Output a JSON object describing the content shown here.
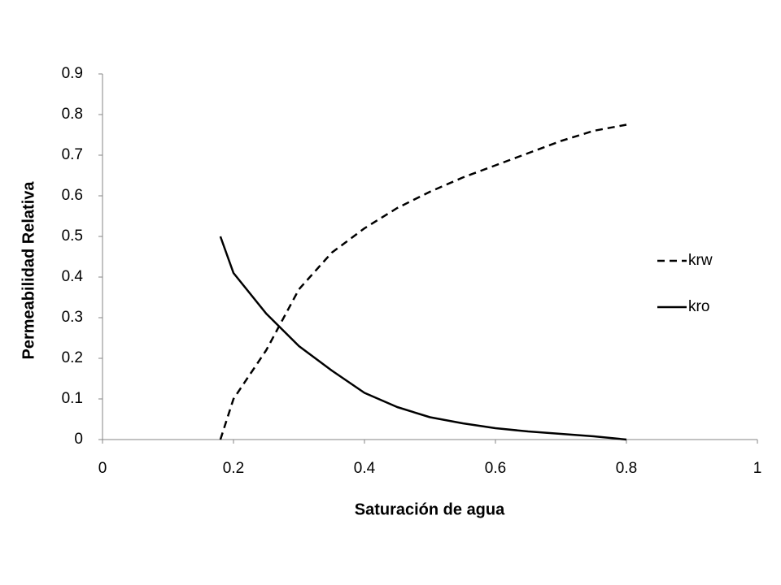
{
  "chart_data": {
    "type": "line",
    "x": [
      0.18,
      0.2,
      0.25,
      0.3,
      0.35,
      0.4,
      0.45,
      0.5,
      0.55,
      0.6,
      0.65,
      0.7,
      0.75,
      0.8
    ],
    "series": [
      {
        "name": "krw",
        "color": "#000000",
        "dash": true,
        "values": [
          0,
          0.1,
          0.22,
          0.37,
          0.46,
          0.52,
          0.57,
          0.61,
          0.645,
          0.675,
          0.705,
          0.735,
          0.76,
          0.775
        ]
      },
      {
        "name": "kro",
        "color": "#000000",
        "dash": false,
        "values": [
          0.5,
          0.41,
          0.31,
          0.23,
          0.17,
          0.115,
          0.08,
          0.055,
          0.04,
          0.028,
          0.02,
          0.014,
          0.008,
          0
        ]
      }
    ],
    "xlabel": "Saturación de agua",
    "ylabel": "Permeabilidad Relativa",
    "xlim": [
      0,
      1
    ],
    "xticks": [
      0,
      0.2,
      0.4,
      0.6,
      0.8,
      1
    ],
    "ylim": [
      0,
      0.9
    ],
    "yticks": [
      0,
      0.1,
      0.2,
      0.3,
      0.4,
      0.5,
      0.6,
      0.7,
      0.8,
      0.9
    ],
    "grid": false,
    "legend": "right"
  }
}
